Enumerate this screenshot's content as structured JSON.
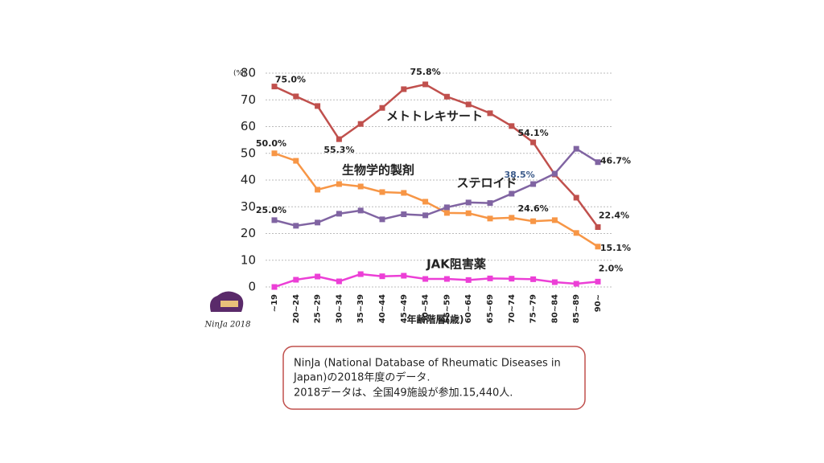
{
  "chart_data": {
    "type": "line",
    "y_unit": "(%)",
    "x_label": "年齢階層(歳)",
    "categories": [
      "~19",
      "20~24",
      "25~29",
      "30~34",
      "35~39",
      "40~44",
      "45~49",
      "50~54",
      "55~59",
      "60~64",
      "65~69",
      "70~74",
      "75~79",
      "80~84",
      "85~89",
      "90~"
    ],
    "ylim": [
      0,
      80
    ],
    "yticks": [
      0,
      10,
      20,
      30,
      40,
      50,
      60,
      70,
      80
    ],
    "grid": true,
    "series": [
      {
        "name": "メトトレキサート",
        "color": "#c0504d",
        "values": [
          75.0,
          71.3,
          67.7,
          55.3,
          61.0,
          67.0,
          74.0,
          75.8,
          71.2,
          68.3,
          65.0,
          60.2,
          54.1,
          42.1,
          33.4,
          22.4
        ],
        "value_labels": [
          "75.0%",
          null,
          null,
          "55.3%",
          null,
          null,
          null,
          "75.8%",
          null,
          null,
          null,
          null,
          "54.1%",
          null,
          null,
          "22.4%"
        ]
      },
      {
        "name": "生物学的製剤",
        "color": "#f79646",
        "values": [
          50.0,
          47.2,
          36.4,
          38.5,
          37.6,
          35.5,
          35.2,
          31.9,
          27.7,
          27.6,
          25.6,
          25.9,
          24.6,
          25.0,
          20.2,
          15.1
        ],
        "value_labels": [
          "50.0%",
          null,
          null,
          null,
          null,
          null,
          null,
          null,
          null,
          null,
          null,
          null,
          "24.6%",
          null,
          null,
          "15.1%"
        ]
      },
      {
        "name": "ステロイド",
        "color": "#8064a2",
        "values": [
          25.0,
          22.9,
          24.1,
          27.4,
          28.6,
          25.3,
          27.2,
          26.8,
          29.8,
          31.6,
          31.4,
          34.9,
          38.5,
          42.4,
          51.7,
          46.7
        ],
        "value_labels": [
          "25.0%",
          null,
          null,
          null,
          null,
          null,
          null,
          null,
          null,
          null,
          null,
          null,
          "38.5%",
          null,
          null,
          "46.7%"
        ]
      },
      {
        "name": "JAK阻害薬",
        "color": "#ec3fd6",
        "values": [
          0,
          2.7,
          3.9,
          2.1,
          4.8,
          4.0,
          4.2,
          3.0,
          3.0,
          2.6,
          3.2,
          3.1,
          2.9,
          1.8,
          1.2,
          2.0
        ],
        "value_labels": [
          null,
          null,
          null,
          null,
          null,
          null,
          null,
          null,
          null,
          null,
          null,
          null,
          null,
          null,
          null,
          "2.0%"
        ]
      }
    ]
  },
  "logo_text": "NinJa 2018",
  "note": {
    "lines": [
      "NinJa (National Database of Rheumatic Diseases in",
      "Japan)の2018年度のデータ.",
      "2018データは、全国49施設が参加.15,440人."
    ]
  }
}
